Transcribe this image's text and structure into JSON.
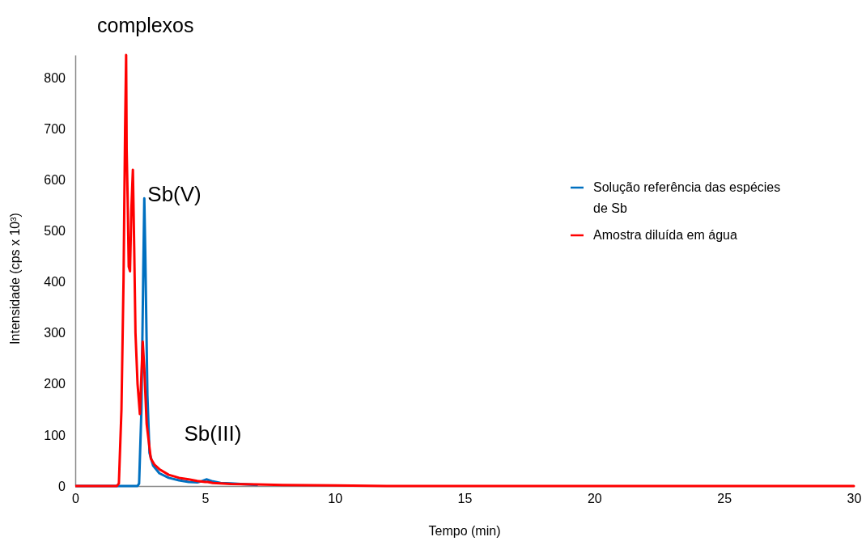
{
  "chart_data": {
    "type": "line",
    "title": "complexos",
    "xlabel": "Tempo (min)",
    "ylabel": "Intensidade (cps x 10³)",
    "xlim": [
      0,
      30
    ],
    "xticks": [
      0,
      5,
      10,
      15,
      20,
      25,
      30
    ],
    "ylim": [
      0,
      845
    ],
    "yticks": [
      0,
      100,
      200,
      300,
      400,
      500,
      600,
      700,
      800
    ],
    "grid": false,
    "legend": "right",
    "line_style": "solid",
    "marker": "none",
    "annotations": [
      {
        "text": "Sb(V)",
        "x": 2.66,
        "y": 564
      },
      {
        "text": "Sb(III)",
        "x": 5.05,
        "y": 13
      }
    ],
    "series": [
      {
        "name": "Solução referência das espécies de Sb",
        "color": "#0070c0",
        "x": [
          0,
          1,
          2,
          2.4,
          2.46,
          2.55,
          2.62,
          2.66,
          2.7,
          2.78,
          2.86,
          3.0,
          3.24,
          3.6,
          4.0,
          4.37,
          4.7,
          4.9,
          5.05,
          5.3,
          5.6,
          6,
          7
        ],
        "values": [
          0,
          0,
          0,
          0,
          5,
          150,
          420,
          564,
          450,
          178,
          65,
          40,
          25,
          16,
          11,
          8,
          7,
          10,
          13,
          9,
          6,
          5,
          2
        ]
      },
      {
        "name": "Amostra diluída em água",
        "color": "#ff0000",
        "x": [
          0,
          1,
          1.6,
          1.68,
          1.78,
          1.86,
          1.92,
          1.96,
          1.98,
          2.02,
          2.06,
          2.11,
          2.16,
          2.22,
          2.27,
          2.32,
          2.4,
          2.49,
          2.55,
          2.6,
          2.66,
          2.75,
          2.91,
          3.05,
          3.24,
          3.6,
          4.0,
          4.37,
          4.7,
          5.0,
          5.1,
          5.3,
          6,
          7,
          8,
          10,
          12,
          15,
          20,
          25,
          30
        ],
        "values": [
          0,
          0,
          0,
          5,
          150,
          405,
          700,
          845,
          660,
          560,
          430,
          421,
          540,
          620,
          470,
          300,
          200,
          141,
          220,
          283,
          230,
          122,
          54,
          42,
          33,
          22,
          16,
          13,
          10,
          8,
          8,
          6,
          4,
          3,
          2,
          1,
          0,
          0,
          0,
          0,
          0
        ]
      }
    ]
  }
}
